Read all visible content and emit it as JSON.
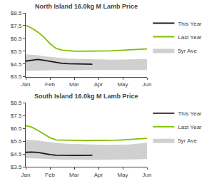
{
  "chart_data": [
    {
      "type": "line",
      "title": "North Island 16.0kg M Lamb Price",
      "categories": [
        "Jan",
        null,
        null,
        null,
        "Feb",
        null,
        null,
        null,
        "Mar",
        null,
        null,
        null,
        "Apr",
        null,
        null,
        null,
        "May",
        null,
        null,
        null,
        "Jun"
      ],
      "series": [
        {
          "name": "5yr Ave",
          "type": "band",
          "color": "#d0d0d0",
          "upper": [
            5.25,
            5.22,
            5.18,
            5.1,
            5.05,
            5.0,
            4.95,
            4.92,
            4.9,
            4.88,
            4.87,
            4.86,
            4.85,
            4.84,
            4.83,
            4.83,
            4.84,
            4.85,
            4.86,
            4.87,
            4.88
          ],
          "lower": [
            3.95,
            3.97,
            3.98,
            3.99,
            4.0,
            4.01,
            4.01,
            4.02,
            4.02,
            4.02,
            4.02,
            4.02,
            4.02,
            4.02,
            4.02,
            4.02,
            4.02,
            4.02,
            4.02,
            4.02,
            4.02
          ]
        },
        {
          "name": "Last Year",
          "type": "line",
          "color": "#80c000",
          "values": [
            7.52,
            7.3,
            7.0,
            6.6,
            6.1,
            5.72,
            5.58,
            5.52,
            5.5,
            5.5,
            5.5,
            5.48,
            5.5,
            5.5,
            5.52,
            5.55,
            5.57,
            5.6,
            5.62,
            5.65,
            5.68
          ]
        },
        {
          "name": "This Year",
          "type": "line",
          "color": "#1a1a1a",
          "values": [
            4.72,
            4.8,
            4.85,
            4.78,
            4.7,
            4.62,
            4.55,
            4.52,
            4.5,
            4.48,
            4.47,
            4.48,
            null,
            null,
            null,
            null,
            null,
            null,
            null,
            null,
            null
          ]
        }
      ],
      "ylim": [
        3.5,
        8.5
      ],
      "yticks": [
        {
          "value": 3.5,
          "label": "$3.5"
        },
        {
          "value": 4.5,
          "label": "$4.5"
        },
        {
          "value": 5.5,
          "label": "$5.5"
        },
        {
          "value": 6.5,
          "label": "$6.5"
        },
        {
          "value": 7.5,
          "label": "$7.5"
        },
        {
          "value": 8.5,
          "label": "$8.5"
        }
      ],
      "grid": false,
      "legend": "upper right"
    },
    {
      "type": "line",
      "title": "South Island 16.0kg M Lamb Price",
      "categories": [
        "Jan",
        null,
        null,
        null,
        "Feb",
        null,
        null,
        null,
        "Mar",
        null,
        null,
        null,
        "Apr",
        null,
        null,
        null,
        "May",
        null,
        null,
        null,
        "Jun"
      ],
      "series": [
        {
          "name": "5yr Ave",
          "type": "band",
          "color": "#d0d0d0",
          "upper": [
            5.62,
            5.6,
            5.55,
            5.48,
            5.42,
            5.37,
            5.33,
            5.3,
            5.28,
            5.26,
            5.25,
            5.24,
            5.23,
            5.22,
            5.22,
            5.22,
            5.23,
            5.25,
            5.28,
            5.32,
            5.38
          ],
          "lower": [
            4.18,
            4.15,
            4.12,
            4.1,
            4.08,
            4.07,
            4.06,
            4.05,
            4.05,
            4.05,
            4.05,
            4.05,
            4.05,
            4.05,
            4.05,
            4.05,
            4.05,
            4.06,
            4.07,
            4.09,
            4.12
          ]
        },
        {
          "name": "Last Year",
          "type": "line",
          "color": "#80c000",
          "values": [
            6.72,
            6.6,
            6.35,
            6.05,
            5.78,
            5.6,
            5.58,
            5.57,
            5.56,
            5.56,
            5.55,
            5.55,
            5.56,
            5.56,
            5.57,
            5.58,
            5.6,
            5.62,
            5.65,
            5.68,
            5.72
          ]
        },
        {
          "name": "This Year",
          "type": "line",
          "color": "#1a1a1a",
          "values": [
            4.63,
            4.65,
            4.62,
            4.52,
            4.45,
            4.4,
            4.38,
            4.38,
            4.38,
            4.38,
            4.38,
            4.4,
            null,
            null,
            null,
            null,
            null,
            null,
            null,
            null,
            null
          ]
        }
      ],
      "ylim": [
        3.5,
        8.5
      ],
      "yticks": [
        {
          "value": 3.5,
          "label": "$3.5"
        },
        {
          "value": 4.5,
          "label": "$4.5"
        },
        {
          "value": 5.5,
          "label": "$5.5"
        },
        {
          "value": 6.5,
          "label": "$6.5"
        },
        {
          "value": 7.5,
          "label": "$7.5"
        },
        {
          "value": 8.5,
          "label": "$8.5"
        }
      ],
      "grid": false,
      "legend": "upper right"
    }
  ]
}
